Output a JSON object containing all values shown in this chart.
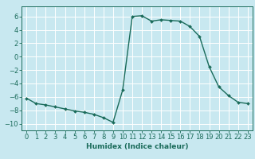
{
  "x": [
    0,
    1,
    2,
    3,
    4,
    5,
    6,
    7,
    8,
    9,
    10,
    11,
    12,
    13,
    14,
    15,
    16,
    17,
    18,
    19,
    20,
    21,
    22,
    23
  ],
  "y": [
    -6.2,
    -7.0,
    -7.2,
    -7.5,
    -7.8,
    -8.1,
    -8.3,
    -8.6,
    -9.1,
    -9.8,
    -5.0,
    6.0,
    6.1,
    5.3,
    5.5,
    5.4,
    5.3,
    4.5,
    3.0,
    -1.5,
    -4.5,
    -5.8,
    -6.8,
    -7.0
  ],
  "line_color": "#1a6b5a",
  "marker": "D",
  "marker_size": 2.0,
  "xlabel": "Humidex (Indice chaleur)",
  "xlim": [
    -0.5,
    23.5
  ],
  "ylim": [
    -11,
    7.5
  ],
  "yticks": [
    -10,
    -8,
    -6,
    -4,
    -2,
    0,
    2,
    4,
    6
  ],
  "xticks": [
    0,
    1,
    2,
    3,
    4,
    5,
    6,
    7,
    8,
    9,
    10,
    11,
    12,
    13,
    14,
    15,
    16,
    17,
    18,
    19,
    20,
    21,
    22,
    23
  ],
  "background_color": "#c8e8f0",
  "grid_color": "#ffffff",
  "tick_color": "#1a6b5a",
  "label_color": "#1a6b5a",
  "label_fontsize": 6.5,
  "tick_fontsize": 6.0,
  "linewidth": 1.0
}
